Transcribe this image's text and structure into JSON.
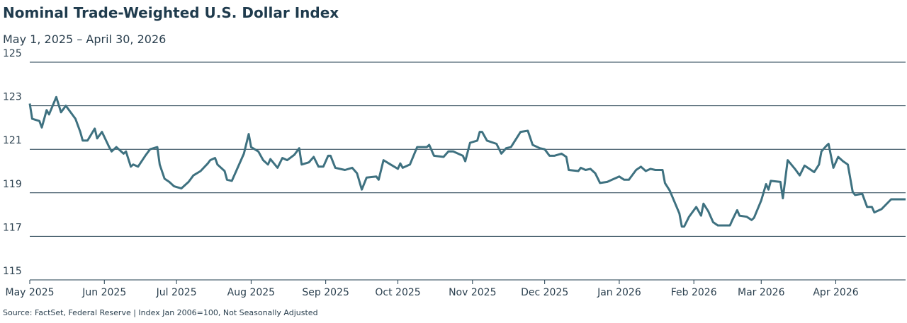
{
  "chart_data": {
    "type": "line",
    "title": "Nominal Trade-Weighted U.S. Dollar Index",
    "subtitle": "May 1, 2025 – April 30, 2026",
    "source": "Source: FactSet, Federal Reserve  |  Index Jan 2006=100, Not Seasonally Adjusted",
    "x": [
      0,
      1,
      4,
      5,
      7,
      8,
      11,
      13,
      15,
      19,
      21,
      22,
      24,
      27,
      28,
      30,
      33,
      34,
      36,
      39,
      40,
      42,
      43,
      45,
      48,
      50,
      53,
      54,
      56,
      58,
      60,
      63,
      66,
      68,
      71,
      74,
      75,
      77,
      78,
      81,
      82,
      84,
      86,
      89,
      91,
      92,
      95,
      97,
      99,
      100,
      103,
      105,
      107,
      110,
      112,
      113,
      116,
      118,
      120,
      122,
      124,
      125,
      127,
      131,
      134,
      136,
      138,
      140,
      144,
      145,
      147,
      150,
      153,
      154,
      155,
      158,
      161,
      165,
      166,
      168,
      172,
      174,
      176,
      180,
      181,
      183,
      186,
      187,
      188,
      190,
      194,
      196,
      198,
      200,
      204,
      207,
      209,
      212,
      214,
      216,
      218,
      221,
      223,
      224,
      228,
      229,
      231,
      233,
      235,
      237,
      240,
      242,
      245,
      247,
      249,
      252,
      254,
      256,
      258,
      260,
      263,
      264,
      266,
      270,
      271,
      272,
      274,
      277,
      279,
      280,
      282,
      284,
      286,
      288,
      291,
      292,
      294,
      295,
      298,
      300,
      301,
      304,
      306,
      307,
      308,
      312,
      313,
      315,
      318,
      320,
      322,
      324,
      326,
      328,
      329,
      331,
      332,
      334,
      336,
      338,
      340,
      342,
      343,
      346,
      348,
      350,
      351,
      354,
      358,
      364
    ],
    "series": [
      {
        "name": "Nominal Trade-Weighted U.S. Dollar Index",
        "color": "#3e7180",
        "values": [
          123.1,
          122.4,
          122.3,
          122.0,
          122.8,
          122.6,
          123.4,
          122.7,
          123.0,
          122.4,
          121.8,
          121.4,
          121.4,
          121.95,
          121.5,
          121.8,
          121.1,
          120.9,
          121.1,
          120.8,
          120.9,
          120.2,
          120.3,
          120.2,
          120.7,
          121.0,
          121.1,
          120.3,
          119.65,
          119.5,
          119.3,
          119.2,
          119.5,
          119.8,
          120.0,
          120.35,
          120.5,
          120.6,
          120.3,
          120.0,
          119.6,
          119.55,
          120.05,
          120.8,
          121.7,
          121.1,
          120.9,
          120.5,
          120.3,
          120.55,
          120.15,
          120.6,
          120.5,
          120.75,
          121.05,
          120.3,
          120.4,
          120.65,
          120.2,
          120.2,
          120.7,
          120.7,
          120.15,
          120.05,
          120.15,
          119.9,
          119.15,
          119.7,
          119.75,
          119.6,
          120.5,
          120.3,
          120.1,
          120.35,
          120.15,
          120.3,
          121.1,
          121.1,
          121.2,
          120.7,
          120.65,
          120.9,
          120.9,
          120.7,
          120.45,
          121.3,
          121.4,
          121.8,
          121.8,
          121.4,
          121.25,
          120.8,
          121.05,
          121.1,
          121.8,
          121.85,
          121.2,
          121.05,
          121.0,
          120.7,
          120.7,
          120.8,
          120.65,
          120.05,
          120.0,
          120.15,
          120.05,
          120.1,
          119.9,
          119.45,
          119.5,
          119.6,
          119.75,
          119.6,
          119.6,
          120.05,
          120.2,
          120.0,
          120.1,
          120.05,
          120.05,
          119.45,
          119.1,
          118.05,
          117.45,
          117.45,
          117.9,
          118.35,
          117.95,
          118.5,
          118.15,
          117.65,
          117.5,
          117.5,
          117.5,
          117.75,
          118.2,
          117.95,
          117.9,
          117.75,
          117.85,
          118.65,
          119.4,
          119.15,
          119.55,
          119.5,
          118.75,
          120.5,
          120.1,
          119.8,
          120.25,
          120.1,
          119.95,
          120.3,
          120.9,
          121.15,
          121.25,
          120.15,
          120.65,
          120.45,
          120.3,
          119.05,
          118.9,
          118.95,
          118.35,
          118.35,
          118.1,
          118.25,
          118.7,
          118.7
        ]
      }
    ],
    "xlim": [
      0,
      364
    ],
    "xticks": [
      {
        "value": 0,
        "label": "May 2025"
      },
      {
        "value": 31,
        "label": "Jun 2025"
      },
      {
        "value": 61,
        "label": "Jul 2025"
      },
      {
        "value": 92,
        "label": "Aug 2025"
      },
      {
        "value": 123,
        "label": "Sep 2025"
      },
      {
        "value": 153,
        "label": "Oct 2025"
      },
      {
        "value": 184,
        "label": "Nov 2025"
      },
      {
        "value": 214,
        "label": "Dec 2025"
      },
      {
        "value": 245,
        "label": "Jan 2026"
      },
      {
        "value": 276,
        "label": "Feb 2026"
      },
      {
        "value": 304,
        "label": "Mar 2026"
      },
      {
        "value": 335,
        "label": "Apr 2026"
      }
    ],
    "ylim": [
      115,
      125
    ],
    "yticks": [
      115,
      117,
      119,
      121,
      123,
      125
    ],
    "grid": true
  }
}
